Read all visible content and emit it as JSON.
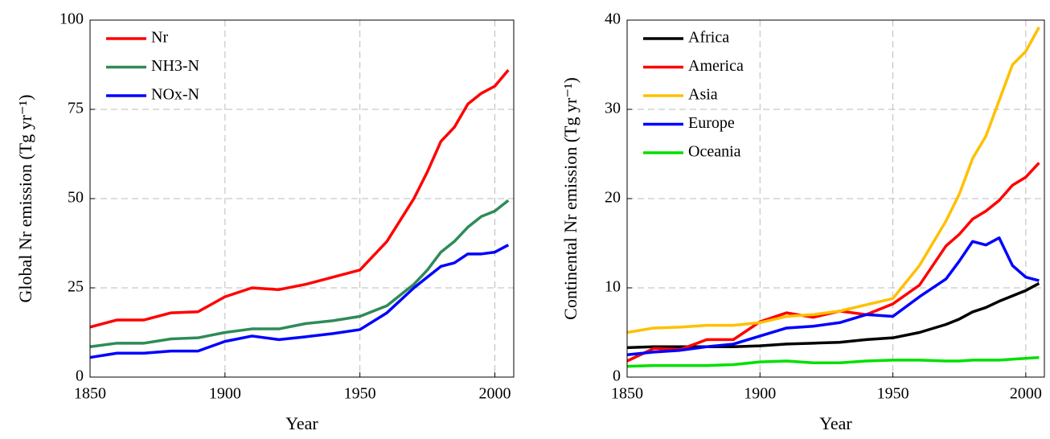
{
  "chart_data": [
    {
      "type": "line",
      "xlabel": "Year",
      "ylabel": "Global Nr emission (Tg yr⁻¹)",
      "x": [
        1850,
        1860,
        1870,
        1880,
        1890,
        1900,
        1910,
        1920,
        1930,
        1940,
        1950,
        1960,
        1970,
        1975,
        1980,
        1985,
        1990,
        1995,
        2000,
        2005
      ],
      "series": [
        {
          "name": "Nr",
          "color": "#ff0000",
          "values": [
            14,
            16,
            16,
            18,
            18.3,
            22.5,
            25,
            24.5,
            26,
            28,
            30,
            38,
            50,
            57.5,
            66,
            70,
            76.5,
            79.5,
            81.5,
            86
          ]
        },
        {
          "name": "NH3-N",
          "color": "#2e8b57",
          "values": [
            8.5,
            9.5,
            9.5,
            10.7,
            11,
            12.5,
            13.5,
            13.5,
            15,
            15.8,
            17,
            20,
            26,
            30,
            35,
            38,
            42,
            45,
            46.5,
            49.5
          ]
        },
        {
          "name": "NOx-N",
          "color": "#0000ff",
          "values": [
            5.5,
            6.7,
            6.7,
            7.3,
            7.3,
            10,
            11.5,
            10.5,
            11.3,
            12.2,
            13.3,
            18,
            25,
            28,
            31,
            32,
            34.5,
            34.5,
            35,
            37
          ]
        }
      ],
      "xlim": [
        1850,
        2007
      ],
      "ylim": [
        0,
        100
      ],
      "xticks": [
        1850,
        1900,
        1950,
        2000
      ],
      "yticks": [
        0,
        25,
        50,
        75,
        100
      ],
      "grid": true,
      "legend": "upper left"
    },
    {
      "type": "line",
      "xlabel": "Year",
      "ylabel": "Continental Nr emission (Tg yr⁻¹)",
      "x": [
        1850,
        1860,
        1870,
        1880,
        1890,
        1900,
        1910,
        1920,
        1930,
        1940,
        1950,
        1960,
        1970,
        1975,
        1980,
        1985,
        1990,
        1995,
        2000,
        2005
      ],
      "series": [
        {
          "name": "Africa",
          "color": "#000000",
          "values": [
            3.3,
            3.4,
            3.4,
            3.4,
            3.4,
            3.5,
            3.7,
            3.8,
            3.9,
            4.2,
            4.4,
            5,
            5.9,
            6.5,
            7.3,
            7.8,
            8.5,
            9.1,
            9.7,
            10.5
          ]
        },
        {
          "name": "America",
          "color": "#ff0000",
          "values": [
            1.8,
            3.2,
            3.1,
            4.2,
            4.2,
            6.2,
            7.2,
            6.7,
            7.4,
            7,
            8.2,
            10.3,
            14.7,
            16,
            17.7,
            18.6,
            19.8,
            21.5,
            22.4,
            24
          ]
        },
        {
          "name": "Asia",
          "color": "#ffc000",
          "values": [
            5,
            5.5,
            5.6,
            5.8,
            5.8,
            6.1,
            6.8,
            7,
            7.4,
            8.1,
            8.8,
            12.5,
            17.5,
            20.5,
            24.5,
            27,
            31,
            35,
            36.5,
            39.2
          ]
        },
        {
          "name": "Europe",
          "color": "#0000ff",
          "values": [
            2.5,
            2.8,
            3,
            3.4,
            3.7,
            4.6,
            5.5,
            5.7,
            6.1,
            7,
            6.8,
            9,
            11,
            13,
            15.2,
            14.8,
            15.6,
            12.5,
            11.2,
            10.8
          ]
        },
        {
          "name": "Oceania",
          "color": "#00e000",
          "values": [
            1.2,
            1.3,
            1.3,
            1.3,
            1.4,
            1.7,
            1.8,
            1.6,
            1.6,
            1.8,
            1.9,
            1.9,
            1.8,
            1.8,
            1.9,
            1.9,
            1.9,
            2,
            2.1,
            2.2
          ]
        }
      ],
      "xlim": [
        1850,
        2007
      ],
      "ylim": [
        0,
        40
      ],
      "xticks": [
        1850,
        1900,
        1950,
        2000
      ],
      "yticks": [
        0,
        10,
        20,
        30,
        40
      ],
      "grid": true,
      "legend": "upper left"
    }
  ]
}
